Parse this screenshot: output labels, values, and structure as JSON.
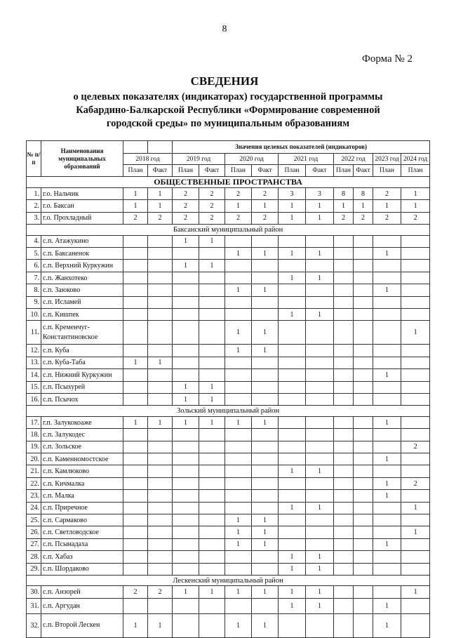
{
  "page_number": "8",
  "form_label": "Форма № 2",
  "title": "СВЕДЕНИЯ",
  "subtitle_lines": [
    "о целевых показателях (индикаторах) государственной программы",
    "Кабардино-Балкарской Республики «Формирование современной",
    "городской среды» по муниципальным образованиям"
  ],
  "table": {
    "col_num": "№ п/п",
    "col_name": "Наименования муниципальных образований",
    "group_header": "Значения целевых показателей (индикаторов)",
    "years": [
      {
        "label": "2018 год",
        "span": 2
      },
      {
        "label": "2019 год",
        "span": 2
      },
      {
        "label": "2020 год",
        "span": 2
      },
      {
        "label": "2021 год",
        "span": 2
      },
      {
        "label": "2022 год",
        "span": 2
      },
      {
        "label": "2023 год",
        "span": 1
      },
      {
        "label": "2024 год",
        "span": 1
      }
    ],
    "subcols": [
      "План",
      "Факт",
      "План",
      "Факт",
      "План",
      "Факт",
      "План",
      "Факт",
      "План",
      "Факт",
      "План",
      "План"
    ],
    "sections": [
      {
        "title": "ОБЩЕСТВЕННЫЕ ПРОСТРАНСТВА",
        "main": true,
        "rows": [
          {
            "n": "1.",
            "name": "г.о. Нальчик",
            "v": [
              "1",
              "1",
              "2",
              "2",
              "2",
              "2",
              "3",
              "3",
              "8",
              "8",
              "2",
              "1"
            ]
          },
          {
            "n": "2.",
            "name": "г.о. Баксан",
            "v": [
              "1",
              "1",
              "2",
              "2",
              "1",
              "1",
              "1",
              "1",
              "1",
              "1",
              "1",
              "1"
            ]
          },
          {
            "n": "3.",
            "name": "г.о. Прохладный",
            "v": [
              "2",
              "2",
              "2",
              "2",
              "2",
              "2",
              "1",
              "1",
              "2",
              "2",
              "2",
              "2"
            ]
          }
        ]
      },
      {
        "title": "Баксанский муниципальный район",
        "rows": [
          {
            "n": "4.",
            "name": "с.п. Атажукино",
            "v": [
              "",
              "",
              "1",
              "1",
              "",
              "",
              "",
              "",
              "",
              "",
              "",
              ""
            ]
          },
          {
            "n": "5.",
            "name": "с.п. Баксаненок",
            "v": [
              "",
              "",
              "",
              "",
              "1",
              "1",
              "1",
              "1",
              "",
              "",
              "1",
              ""
            ]
          },
          {
            "n": "6.",
            "name": "с.п. Верхний Куркужин",
            "v": [
              "",
              "",
              "1",
              "1",
              "",
              "",
              "",
              "",
              "",
              "",
              "",
              ""
            ]
          },
          {
            "n": "7.",
            "name": "с.п. Жанхотеко",
            "v": [
              "",
              "",
              "",
              "",
              "",
              "",
              "1",
              "1",
              "",
              "",
              "",
              ""
            ]
          },
          {
            "n": "8.",
            "name": "с.п. Заюково",
            "v": [
              "",
              "",
              "",
              "",
              "1",
              "1",
              "",
              "",
              "",
              "",
              "1",
              ""
            ]
          },
          {
            "n": "9.",
            "name": "с.п. Исламей",
            "v": [
              "",
              "",
              "",
              "",
              "",
              "",
              "",
              "",
              "",
              "",
              "",
              ""
            ]
          },
          {
            "n": "10.",
            "name": "с.п. Кишпек",
            "v": [
              "",
              "",
              "",
              "",
              "",
              "",
              "1",
              "1",
              "",
              "",
              "",
              ""
            ]
          },
          {
            "n": "11.",
            "name": "с.п. Кременчуг-Константиновское",
            "tall": true,
            "v": [
              "",
              "",
              "",
              "",
              "1",
              "1",
              "",
              "",
              "",
              "",
              "",
              "1"
            ]
          },
          {
            "n": "12.",
            "name": "с.п. Куба",
            "v": [
              "",
              "",
              "",
              "",
              "1",
              "1",
              "",
              "",
              "",
              "",
              "",
              ""
            ]
          },
          {
            "n": "13.",
            "name": "с.п. Куба-Таба",
            "v": [
              "1",
              "1",
              "",
              "",
              "",
              "",
              "",
              "",
              "",
              "",
              "",
              ""
            ]
          },
          {
            "n": "14.",
            "name": "с.п. Нижний Куркужин",
            "v": [
              "",
              "",
              "",
              "",
              "",
              "",
              "",
              "",
              "",
              "",
              "1",
              ""
            ]
          },
          {
            "n": "15.",
            "name": "с.п. Псыхурей",
            "v": [
              "",
              "",
              "1",
              "1",
              "",
              "",
              "",
              "",
              "",
              "",
              "",
              ""
            ]
          },
          {
            "n": "16.",
            "name": "с.п. Псычох",
            "v": [
              "",
              "",
              "1",
              "1",
              "",
              "",
              "",
              "",
              "",
              "",
              "",
              ""
            ]
          }
        ]
      },
      {
        "title": "Зольский муниципальный район",
        "rows": [
          {
            "n": "17.",
            "name": "г.п. Залукокоаже",
            "v": [
              "1",
              "1",
              "1",
              "1",
              "1",
              "1",
              "",
              "",
              "",
              "",
              "1",
              ""
            ]
          },
          {
            "n": "18.",
            "name": "с.п. Залукодес",
            "v": [
              "",
              "",
              "",
              "",
              "",
              "",
              "",
              "",
              "",
              "",
              "",
              ""
            ]
          },
          {
            "n": "19.",
            "name": "с.п. Зольское",
            "v": [
              "",
              "",
              "",
              "",
              "",
              "",
              "",
              "",
              "",
              "",
              "",
              "2"
            ]
          },
          {
            "n": "20.",
            "name": "с.п. Каменномостское",
            "v": [
              "",
              "",
              "",
              "",
              "",
              "",
              "",
              "",
              "",
              "",
              "1",
              ""
            ]
          },
          {
            "n": "21.",
            "name": "с.п. Камлюково",
            "v": [
              "",
              "",
              "",
              "",
              "",
              "",
              "1",
              "1",
              "",
              "",
              "",
              ""
            ]
          },
          {
            "n": "22.",
            "name": "с.п. Кичмалка",
            "v": [
              "",
              "",
              "",
              "",
              "",
              "",
              "",
              "",
              "",
              "",
              "1",
              "2"
            ]
          },
          {
            "n": "23.",
            "name": "с.п. Малка",
            "v": [
              "",
              "",
              "",
              "",
              "",
              "",
              "",
              "",
              "",
              "",
              "1",
              ""
            ]
          },
          {
            "n": "24.",
            "name": "с.п. Приречное",
            "v": [
              "",
              "",
              "",
              "",
              "",
              "",
              "1",
              "1",
              "",
              "",
              "",
              "1"
            ]
          },
          {
            "n": "25.",
            "name": "с.п. Сармаково",
            "v": [
              "",
              "",
              "",
              "",
              "1",
              "1",
              "",
              "",
              "",
              "",
              "",
              ""
            ]
          },
          {
            "n": "26.",
            "name": "с.п. Светловодское",
            "v": [
              "",
              "",
              "",
              "",
              "1",
              "1",
              "",
              "",
              "",
              "",
              "",
              "1"
            ]
          },
          {
            "n": "27.",
            "name": "с.п. Псынадаха",
            "v": [
              "",
              "",
              "",
              "",
              "1",
              "1",
              "",
              "",
              "",
              "",
              "1",
              ""
            ]
          },
          {
            "n": "28.",
            "name": "с.п. Хабаз",
            "v": [
              "",
              "",
              "",
              "",
              "",
              "",
              "1",
              "1",
              "",
              "",
              "",
              ""
            ]
          },
          {
            "n": "29.",
            "name": "с.п. Шордаково",
            "v": [
              "",
              "",
              "",
              "",
              "",
              "",
              "1",
              "1",
              "",
              "",
              "",
              ""
            ]
          }
        ]
      },
      {
        "title": "Лескенский муниципальный район",
        "rows": [
          {
            "n": "30.",
            "name": "с.п. Анзорей",
            "v": [
              "2",
              "2",
              "1",
              "1",
              "1",
              "1",
              "1",
              "1",
              "",
              "",
              "",
              "1"
            ]
          },
          {
            "n": "31.",
            "name": "с.п. Аргудан",
            "mid": true,
            "v": [
              "",
              "",
              "",
              "",
              "",
              "",
              "1",
              "1",
              "",
              "",
              "1",
              ""
            ]
          },
          {
            "n": "32.",
            "name": "с.п. Второй Лескен",
            "tall": true,
            "v": [
              "1",
              "1",
              "",
              "",
              "1",
              "1",
              "",
              "",
              "",
              "",
              "1",
              ""
            ]
          }
        ]
      }
    ]
  }
}
